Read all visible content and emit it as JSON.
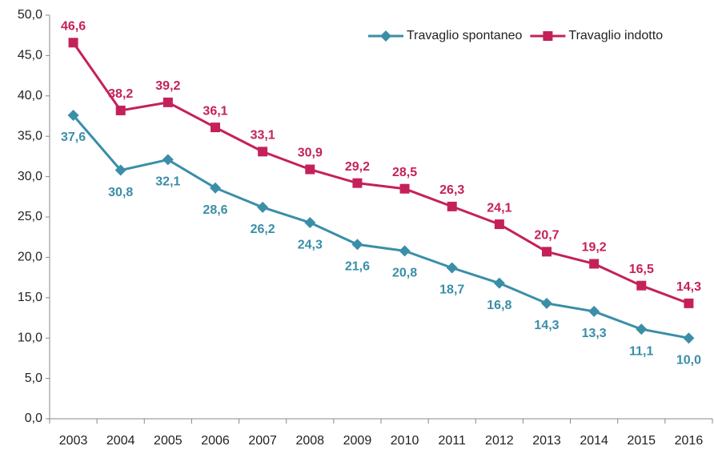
{
  "chart_data": {
    "type": "line",
    "categories": [
      "2003",
      "2004",
      "2005",
      "2006",
      "2007",
      "2008",
      "2009",
      "2010",
      "2011",
      "2012",
      "2013",
      "2014",
      "2015",
      "2016"
    ],
    "series": [
      {
        "name": "Travaglio spontaneo",
        "color": "#3a8ea8",
        "values": [
          37.6,
          30.8,
          32.1,
          28.6,
          26.2,
          24.3,
          21.6,
          20.8,
          18.7,
          16.8,
          14.3,
          13.3,
          11.1,
          10.0
        ],
        "value_labels": [
          "37,6",
          "30,8",
          "32,1",
          "28,6",
          "26,2",
          "24,3",
          "21,6",
          "20,8",
          "18,7",
          "16,8",
          "14,3",
          "13,3",
          "11,1",
          "10,0"
        ]
      },
      {
        "name": "Travaglio indotto",
        "color": "#c4215b",
        "values": [
          46.6,
          38.2,
          39.2,
          36.1,
          33.1,
          30.9,
          29.2,
          28.5,
          26.3,
          24.1,
          20.7,
          19.2,
          16.5,
          14.3
        ],
        "value_labels": [
          "46,6",
          "38,2",
          "39,2",
          "36,1",
          "33,1",
          "30,9",
          "29,2",
          "28,5",
          "26,3",
          "24,1",
          "20,7",
          "19,2",
          "16,5",
          "14,3"
        ]
      }
    ],
    "ylim": [
      0,
      50
    ],
    "yticks": [
      {
        "value": 0,
        "label": "0,0"
      },
      {
        "value": 5,
        "label": "5,0"
      },
      {
        "value": 10,
        "label": "10,0"
      },
      {
        "value": 15,
        "label": "15,0"
      },
      {
        "value": 20,
        "label": "20,0"
      },
      {
        "value": 25,
        "label": "25,0"
      },
      {
        "value": 30,
        "label": "30,0"
      },
      {
        "value": 35,
        "label": "35,0"
      },
      {
        "value": 40,
        "label": "40,0"
      },
      {
        "value": 45,
        "label": "45,0"
      },
      {
        "value": 50,
        "label": "50,0"
      }
    ],
    "grid": false,
    "legend": "top-right"
  }
}
